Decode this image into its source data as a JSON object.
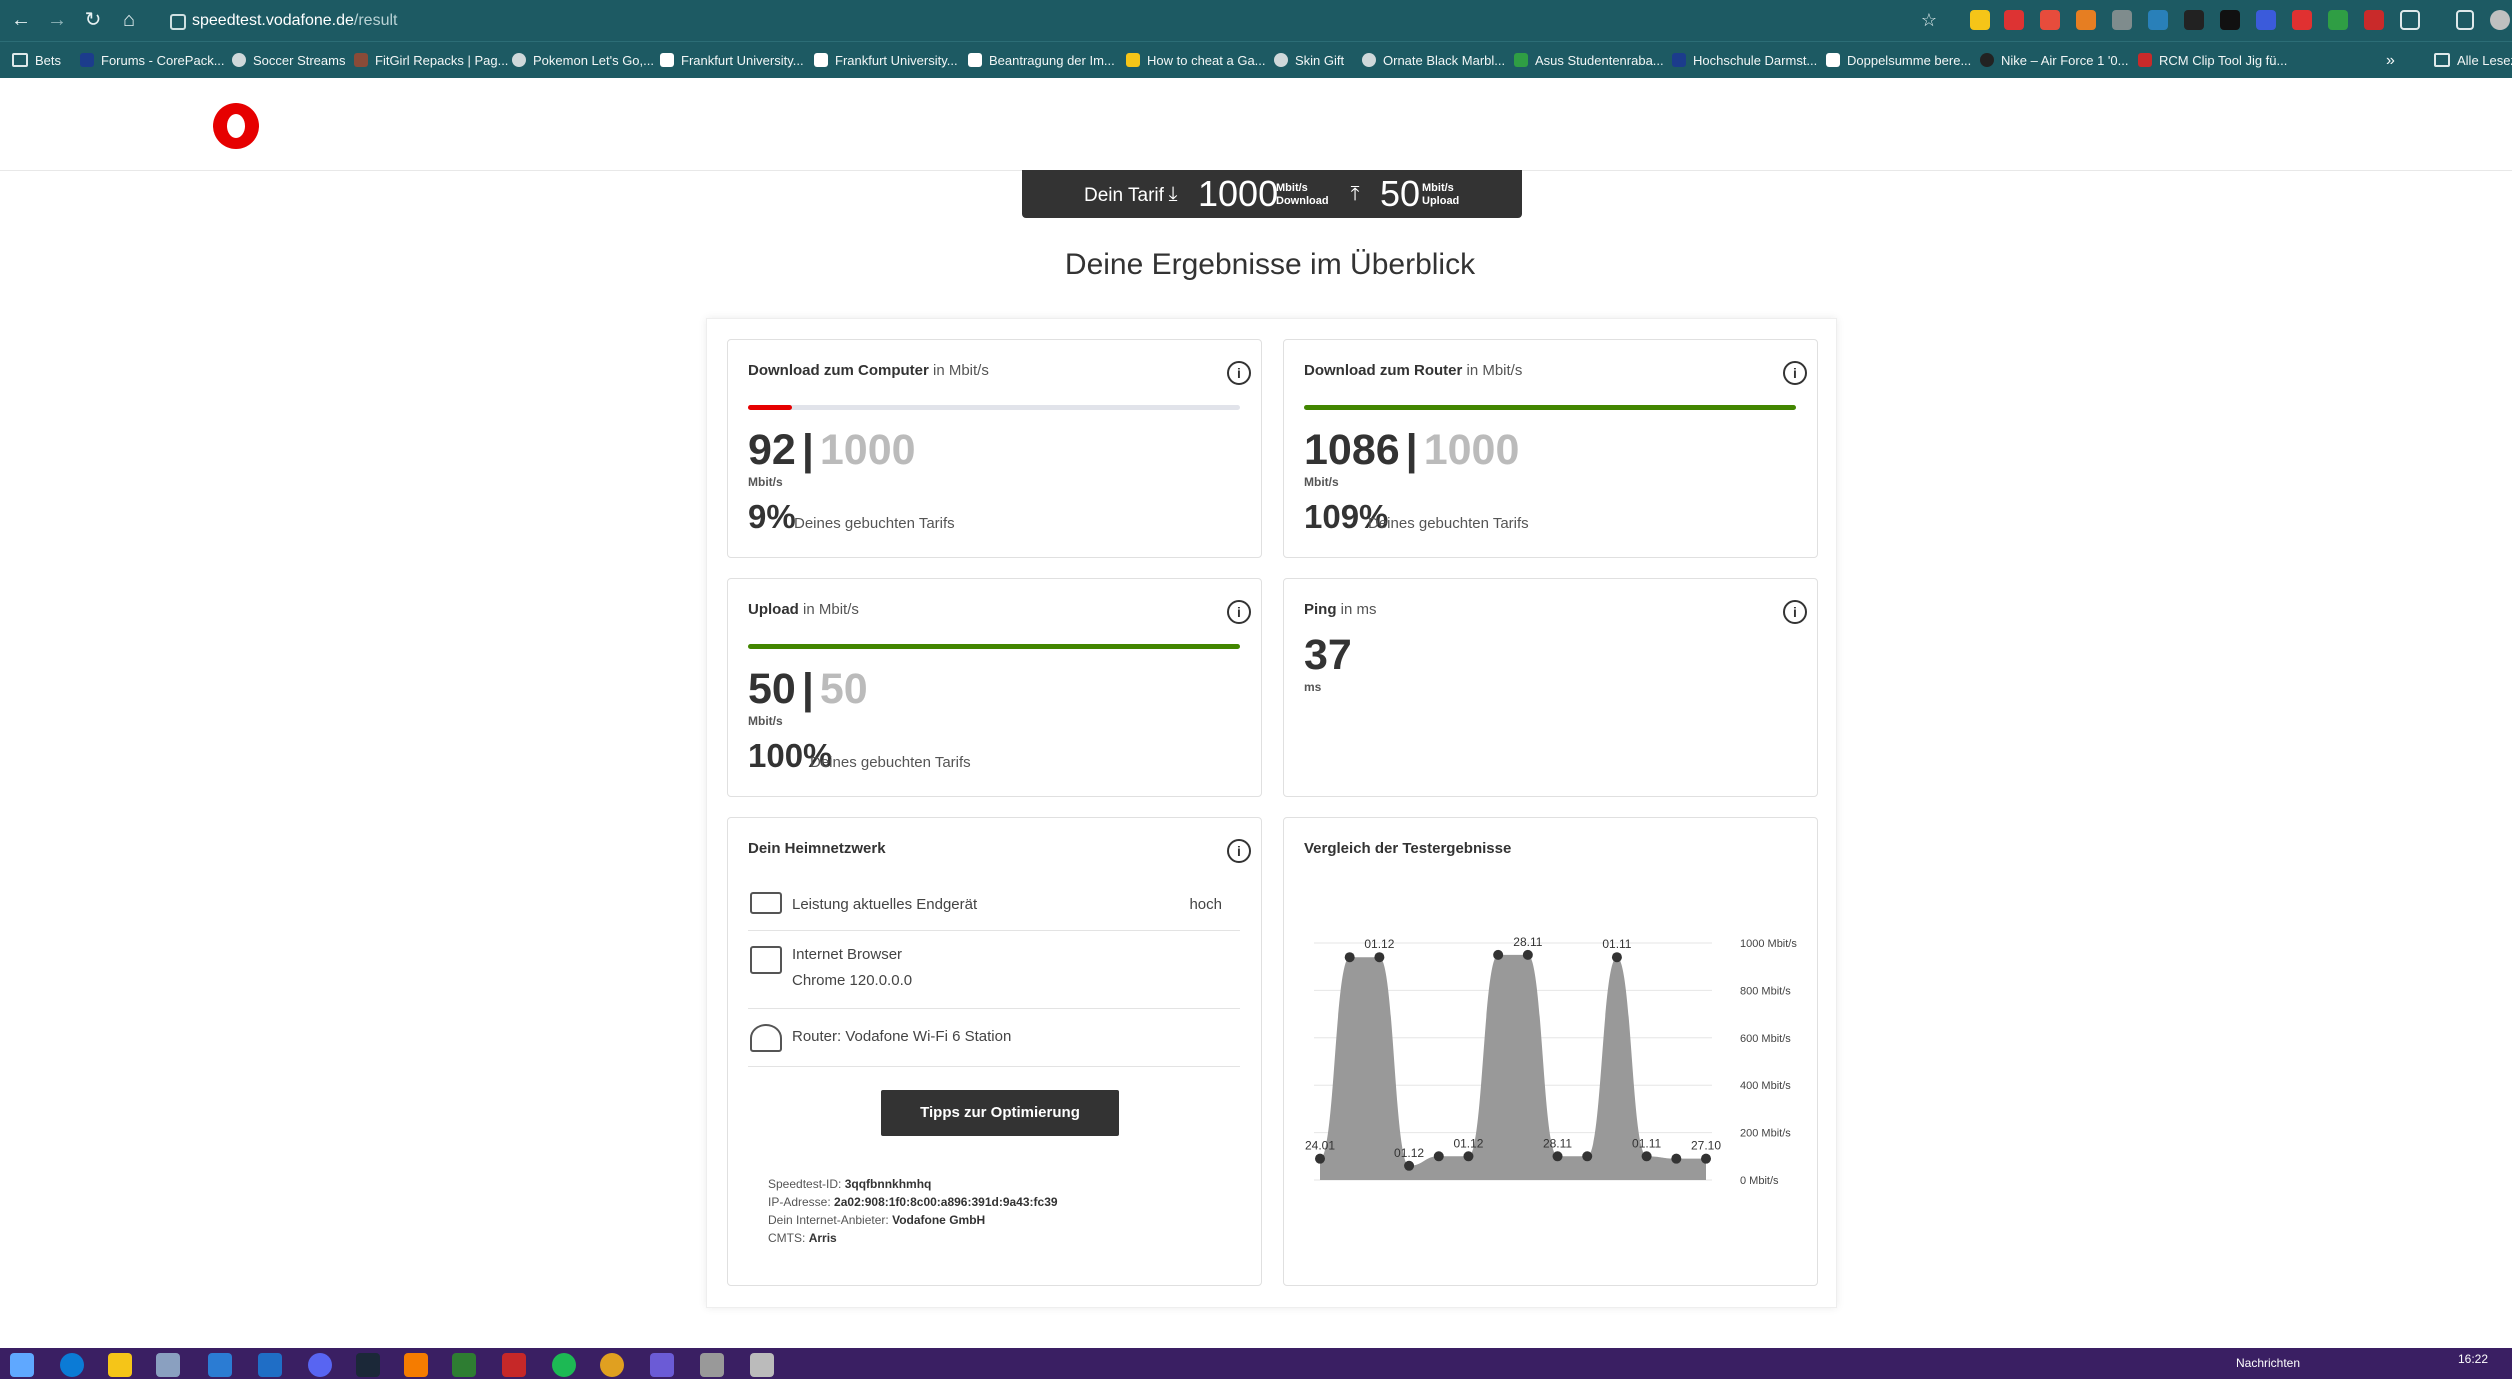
{
  "browser": {
    "url_host": "speedtest.vodafone.de",
    "url_path": "/result",
    "bookmarks": [
      "Bets",
      "Forums - CorePack...",
      "Soccer Streams",
      "FitGirl Repacks | Pag...",
      "Pokemon Let's Go,...",
      "Frankfurt University...",
      "Frankfurt University...",
      "Beantragung der Im...",
      "How to cheat a Ga...",
      "Skin Gift",
      "Ornate Black Marbl...",
      "Asus Studentenraba...",
      "Hochschule Darmst...",
      "Doppelsumme bere...",
      "Nike – Air Force 1 '0...",
      "RCM Clip Tool Jig fü..."
    ],
    "more_bookmarks": "»",
    "all_bookmarks": "Alle Lesez"
  },
  "tarif": {
    "label": "Dein Tarif",
    "download_value": "1000",
    "download_unit": "Mbit/s",
    "download_label": "Download",
    "upload_value": "50",
    "upload_unit": "Mbit/s",
    "upload_label": "Upload"
  },
  "page_title": "Deine Ergebnisse im Überblick",
  "cards": {
    "download_computer": {
      "title": "Download zum Computer",
      "unit_label": "in Mbit/s",
      "value": "92",
      "max": "1000",
      "unit": "Mbit/s",
      "percent": "9%",
      "percent_label": "Deines gebuchten Tarifs",
      "fill_fraction": 0.09,
      "color": "#e60000"
    },
    "download_router": {
      "title": "Download zum Router",
      "unit_label": "in Mbit/s",
      "value": "1086",
      "max": "1000",
      "unit": "Mbit/s",
      "percent": "109%",
      "percent_label": "Deines gebuchten Tarifs",
      "fill_fraction": 1.0,
      "color": "#428600"
    },
    "upload": {
      "title": "Upload",
      "unit_label": "in Mbit/s",
      "value": "50",
      "max": "50",
      "unit": "Mbit/s",
      "percent": "100%",
      "percent_label": "Deines gebuchten Tarifs",
      "fill_fraction": 1.0,
      "color": "#428600"
    },
    "ping": {
      "title": "Ping",
      "unit_label": "in ms",
      "value": "37",
      "unit": "ms"
    }
  },
  "heimnetzwerk": {
    "title": "Dein Heimnetzwerk",
    "rows": [
      {
        "label": "Leistung aktuelles Endgerät",
        "value": "hoch",
        "icon": "laptop-icon"
      },
      {
        "label": "Internet Browser",
        "value": "Chrome 120.0.0.0",
        "icon": "browser-icon"
      },
      {
        "label": "Router: Vodafone Wi-Fi 6 Station",
        "value": "",
        "icon": "router-icon"
      }
    ],
    "tips_button": "Tipps zur Optimierung",
    "meta": [
      {
        "label": "Speedtest-ID:",
        "value": "3qqfbnnkhmhq"
      },
      {
        "label": "IP-Adresse:",
        "value": "2a02:908:1f0:8c00:a896:391d:9a43:fc39"
      },
      {
        "label": "Dein Internet-Anbieter:",
        "value": "Vodafone GmbH"
      },
      {
        "label": "CMTS:",
        "value": "Arris"
      }
    ]
  },
  "comparison": {
    "title": "Vergleich der Testergebnisse"
  },
  "chart_data": {
    "type": "area",
    "title": "Vergleich der Testergebnisse",
    "x": [
      0,
      1,
      2,
      3,
      4,
      5,
      6,
      7,
      8,
      9,
      10,
      11,
      12,
      13
    ],
    "values": [
      90,
      940,
      940,
      60,
      100,
      100,
      950,
      950,
      100,
      100,
      940,
      100,
      90,
      90
    ],
    "point_labels": [
      "24.01",
      "",
      "01.12",
      "01.12",
      "",
      "01.12",
      "",
      "28.11",
      "28.11",
      "",
      "01.11",
      "01.11",
      "",
      "27.10"
    ],
    "ytick_labels": [
      "1000 Mbit/s",
      "800 Mbit/s",
      "600 Mbit/s",
      "400 Mbit/s",
      "200 Mbit/s",
      "0 Mbit/s"
    ],
    "ylim": [
      0,
      1000
    ],
    "grid": true,
    "color": "#999999"
  },
  "system": {
    "time": "16:22",
    "news": "Nachrichten"
  }
}
